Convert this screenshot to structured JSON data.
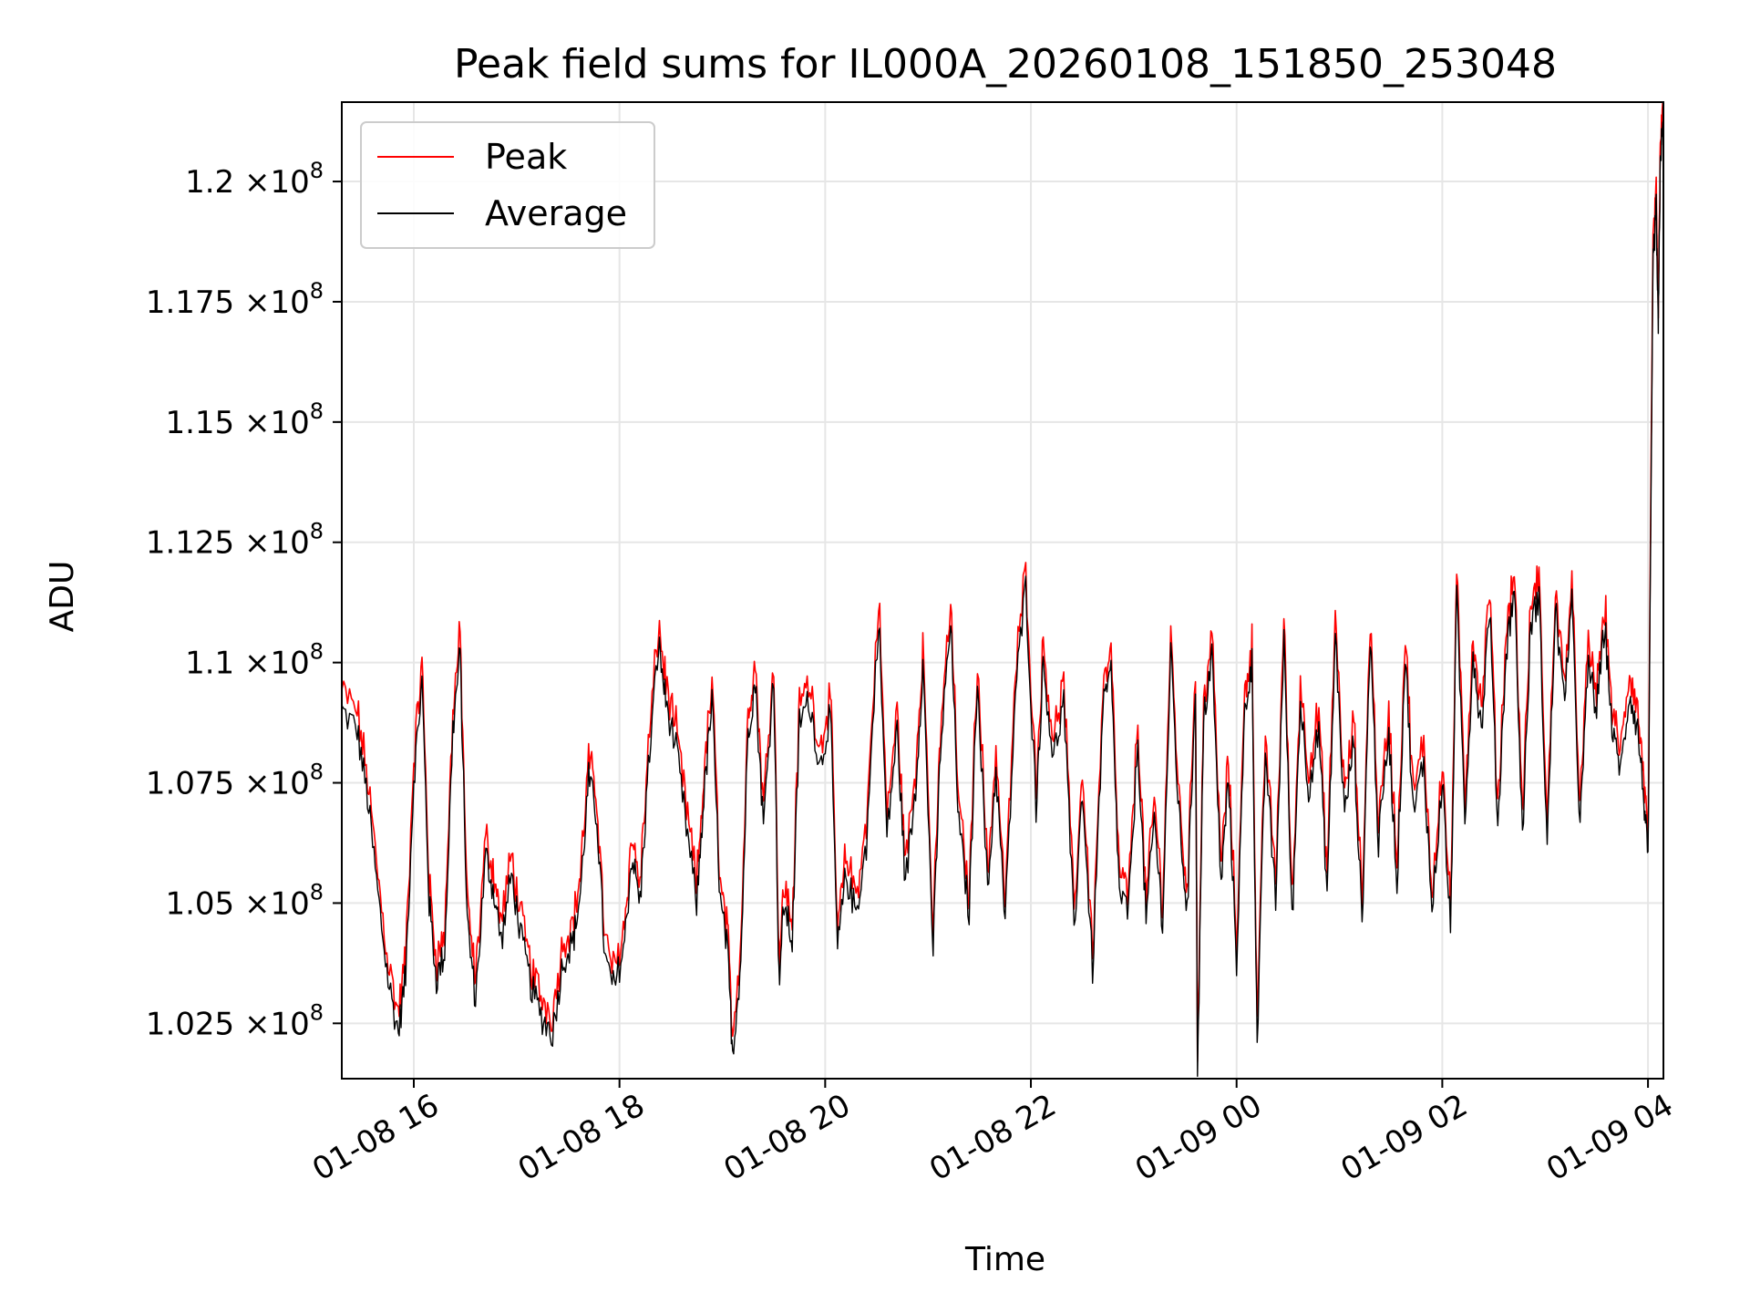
{
  "chart_data": {
    "type": "line",
    "title": "Peak field sums for IL000A_20260108_151850_253048",
    "xlabel": "Time",
    "ylabel": "ADU",
    "grid": true,
    "legend_position": "top-left",
    "x_range_hours": [
      15.3,
      28.15
    ],
    "ylim": [
      101.35,
      121.65
    ],
    "y_scale_note": "values in units of 1e6 ADU",
    "x_ticks": [
      {
        "hour": 16,
        "label": "01-08 16"
      },
      {
        "hour": 18,
        "label": "01-08 18"
      },
      {
        "hour": 20,
        "label": "01-08 20"
      },
      {
        "hour": 22,
        "label": "01-08 22"
      },
      {
        "hour": 24,
        "label": "01-09 00"
      },
      {
        "hour": 26,
        "label": "01-09 02"
      },
      {
        "hour": 28,
        "label": "01-09 04"
      }
    ],
    "y_ticks": [
      {
        "value": 102.5,
        "mantissa": "1.025",
        "exponent": "8"
      },
      {
        "value": 105.0,
        "mantissa": "1.05",
        "exponent": "8"
      },
      {
        "value": 107.5,
        "mantissa": "1.075",
        "exponent": "8"
      },
      {
        "value": 110.0,
        "mantissa": "1.1",
        "exponent": "8"
      },
      {
        "value": 112.5,
        "mantissa": "1.125",
        "exponent": "8"
      },
      {
        "value": 115.0,
        "mantissa": "1.15",
        "exponent": "8"
      },
      {
        "value": 117.5,
        "mantissa": "1.175",
        "exponent": "8"
      },
      {
        "value": 120.0,
        "mantissa": "1.2",
        "exponent": "8"
      }
    ],
    "tick_multiplier": "×10",
    "series": [
      {
        "name": "Peak",
        "color": "#ff0000",
        "offset_mean": 0.22
      },
      {
        "name": "Average",
        "color": "#000000",
        "offset_mean": 0.0
      }
    ],
    "average_trace_keypoints": [
      [
        15.3,
        109.0
      ],
      [
        15.45,
        108.6
      ],
      [
        15.55,
        107.2
      ],
      [
        15.65,
        105.2
      ],
      [
        15.75,
        103.4
      ],
      [
        15.85,
        102.3
      ],
      [
        15.92,
        103.5
      ],
      [
        16.0,
        107.6
      ],
      [
        16.08,
        109.6
      ],
      [
        16.15,
        105.0
      ],
      [
        16.22,
        103.4
      ],
      [
        16.3,
        104.0
      ],
      [
        16.38,
        108.6
      ],
      [
        16.45,
        110.2
      ],
      [
        16.52,
        104.6
      ],
      [
        16.6,
        103.0
      ],
      [
        16.7,
        106.0
      ],
      [
        16.78,
        105.2
      ],
      [
        16.85,
        104.2
      ],
      [
        16.95,
        105.6
      ],
      [
        17.05,
        104.2
      ],
      [
        17.15,
        103.2
      ],
      [
        17.25,
        102.6
      ],
      [
        17.35,
        102.3
      ],
      [
        17.45,
        103.8
      ],
      [
        17.55,
        104.2
      ],
      [
        17.62,
        105.2
      ],
      [
        17.7,
        107.6
      ],
      [
        17.78,
        106.8
      ],
      [
        17.86,
        103.8
      ],
      [
        17.95,
        103.2
      ],
      [
        18.05,
        104.2
      ],
      [
        18.12,
        106.0
      ],
      [
        18.2,
        105.0
      ],
      [
        18.28,
        107.8
      ],
      [
        18.38,
        110.4
      ],
      [
        18.45,
        109.2
      ],
      [
        18.55,
        108.2
      ],
      [
        18.65,
        106.6
      ],
      [
        18.75,
        105.0
      ],
      [
        18.82,
        107.2
      ],
      [
        18.9,
        109.2
      ],
      [
        18.98,
        105.0
      ],
      [
        19.05,
        104.0
      ],
      [
        19.1,
        101.9
      ],
      [
        19.18,
        103.8
      ],
      [
        19.25,
        108.6
      ],
      [
        19.32,
        109.6
      ],
      [
        19.4,
        106.6
      ],
      [
        19.5,
        109.8
      ],
      [
        19.55,
        103.4
      ],
      [
        19.6,
        105.0
      ],
      [
        19.68,
        104.2
      ],
      [
        19.75,
        108.8
      ],
      [
        19.85,
        109.2
      ],
      [
        19.95,
        107.8
      ],
      [
        20.05,
        109.0
      ],
      [
        20.12,
        104.0
      ],
      [
        20.2,
        105.6
      ],
      [
        20.3,
        104.8
      ],
      [
        20.4,
        106.2
      ],
      [
        20.52,
        111.0
      ],
      [
        20.6,
        106.4
      ],
      [
        20.7,
        108.6
      ],
      [
        20.78,
        105.4
      ],
      [
        20.88,
        107.4
      ],
      [
        20.95,
        110.0
      ],
      [
        21.05,
        104.0
      ],
      [
        21.12,
        108.2
      ],
      [
        21.22,
        110.8
      ],
      [
        21.3,
        106.6
      ],
      [
        21.4,
        104.8
      ],
      [
        21.48,
        109.8
      ],
      [
        21.58,
        105.2
      ],
      [
        21.66,
        107.8
      ],
      [
        21.75,
        104.6
      ],
      [
        21.85,
        109.4
      ],
      [
        21.95,
        111.6
      ],
      [
        22.05,
        107.0
      ],
      [
        22.12,
        110.0
      ],
      [
        22.22,
        108.0
      ],
      [
        22.32,
        109.2
      ],
      [
        22.42,
        104.4
      ],
      [
        22.5,
        107.4
      ],
      [
        22.6,
        103.6
      ],
      [
        22.7,
        109.0
      ],
      [
        22.78,
        109.8
      ],
      [
        22.86,
        105.2
      ],
      [
        22.95,
        104.8
      ],
      [
        23.04,
        108.4
      ],
      [
        23.12,
        104.6
      ],
      [
        23.2,
        106.8
      ],
      [
        23.28,
        104.6
      ],
      [
        23.36,
        110.2
      ],
      [
        23.44,
        106.8
      ],
      [
        23.52,
        104.8
      ],
      [
        23.6,
        109.6
      ],
      [
        23.62,
        101.4
      ],
      [
        23.68,
        108.8
      ],
      [
        23.76,
        110.2
      ],
      [
        23.85,
        105.4
      ],
      [
        23.92,
        107.6
      ],
      [
        24.0,
        103.8
      ],
      [
        24.08,
        109.0
      ],
      [
        24.15,
        110.0
      ],
      [
        24.2,
        102.0
      ],
      [
        24.28,
        108.2
      ],
      [
        24.38,
        105.0
      ],
      [
        24.46,
        110.6
      ],
      [
        24.54,
        104.6
      ],
      [
        24.62,
        109.2
      ],
      [
        24.7,
        107.4
      ],
      [
        24.8,
        108.6
      ],
      [
        24.88,
        105.2
      ],
      [
        24.96,
        110.6
      ],
      [
        25.05,
        106.8
      ],
      [
        25.14,
        108.4
      ],
      [
        25.22,
        104.6
      ],
      [
        25.3,
        110.6
      ],
      [
        25.38,
        106.2
      ],
      [
        25.48,
        108.6
      ],
      [
        25.56,
        105.4
      ],
      [
        25.64,
        110.2
      ],
      [
        25.72,
        106.8
      ],
      [
        25.82,
        108.0
      ],
      [
        25.9,
        104.8
      ],
      [
        26.0,
        107.6
      ],
      [
        26.08,
        104.4
      ],
      [
        26.14,
        111.4
      ],
      [
        26.22,
        106.8
      ],
      [
        26.3,
        110.2
      ],
      [
        26.38,
        108.6
      ],
      [
        26.46,
        111.2
      ],
      [
        26.54,
        106.6
      ],
      [
        26.62,
        110.2
      ],
      [
        26.7,
        111.6
      ],
      [
        26.78,
        106.4
      ],
      [
        26.86,
        110.8
      ],
      [
        26.94,
        111.4
      ],
      [
        27.02,
        106.2
      ],
      [
        27.1,
        111.2
      ],
      [
        27.18,
        109.2
      ],
      [
        27.26,
        111.2
      ],
      [
        27.34,
        106.6
      ],
      [
        27.42,
        110.0
      ],
      [
        27.5,
        109.0
      ],
      [
        27.58,
        110.8
      ],
      [
        27.66,
        108.4
      ],
      [
        27.74,
        107.8
      ],
      [
        27.82,
        109.4
      ],
      [
        27.9,
        108.6
      ],
      [
        27.96,
        107.2
      ],
      [
        28.0,
        105.8
      ],
      [
        28.05,
        118.4
      ],
      [
        28.08,
        119.4
      ],
      [
        28.1,
        116.8
      ],
      [
        28.12,
        120.6
      ],
      [
        28.15,
        121.1
      ]
    ]
  }
}
